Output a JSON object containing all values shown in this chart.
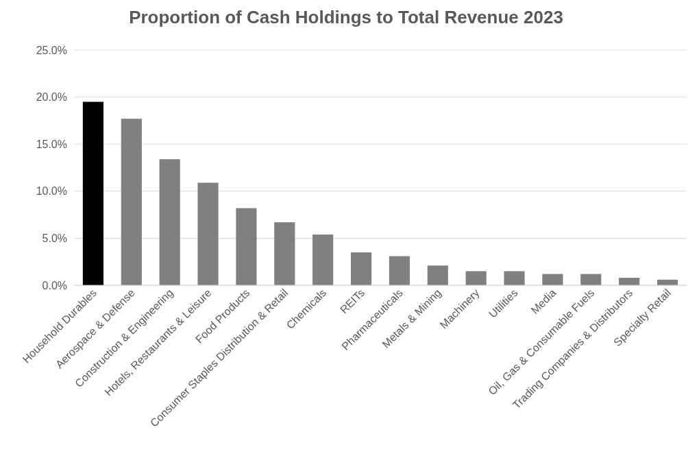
{
  "chart_data": {
    "type": "bar",
    "title": "Proportion of Cash Holdings to Total Revenue 2023",
    "categories": [
      "Household Durables",
      "Aerospace & Defense",
      "Construction & Engineering",
      "Hotels, Restaurants & Leisure",
      "Food Products",
      "Consumer Staples Distribution & Retail",
      "Chemicals",
      "REITs",
      "Pharmaceuticals",
      "Metals & Mining",
      "Machinery",
      "Utilities",
      "Media",
      "Oil, Gas & Consumable Fuels",
      "Trading Companies & Distributors",
      "Specialty Retail"
    ],
    "values": [
      19.5,
      17.7,
      13.4,
      10.9,
      8.2,
      6.7,
      5.4,
      3.5,
      3.1,
      2.1,
      1.5,
      1.5,
      1.2,
      1.2,
      0.8,
      0.6
    ],
    "colors": [
      "#000000",
      "#808080",
      "#808080",
      "#808080",
      "#808080",
      "#808080",
      "#808080",
      "#808080",
      "#808080",
      "#808080",
      "#808080",
      "#808080",
      "#808080",
      "#808080",
      "#808080",
      "#808080"
    ],
    "ylim": [
      0,
      25
    ],
    "yticks": [
      {
        "value": 0,
        "label": "0.0%"
      },
      {
        "value": 5,
        "label": "5.0%"
      },
      {
        "value": 10,
        "label": "10.0%"
      },
      {
        "value": 15,
        "label": "15.0%"
      },
      {
        "value": 20,
        "label": "20.0%"
      },
      {
        "value": 25,
        "label": "25.0%"
      }
    ],
    "grid": "y"
  }
}
